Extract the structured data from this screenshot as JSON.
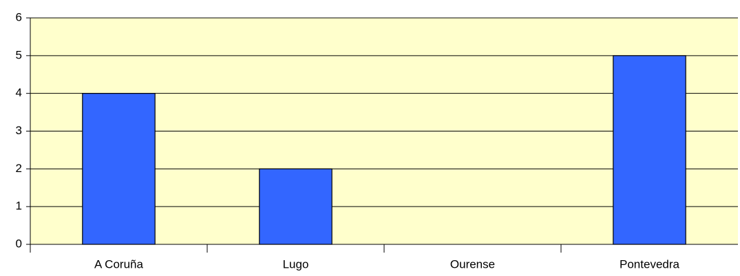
{
  "chart_data": {
    "type": "bar",
    "categories": [
      "A Coruña",
      "Lugo",
      "Ourense",
      "Pontevedra"
    ],
    "values": [
      4,
      2,
      0,
      5
    ],
    "color": "#3366ff",
    "plot_background": "#ffffcc",
    "ylim": [
      0,
      6
    ],
    "yticks": [
      0,
      1,
      2,
      3,
      4,
      5,
      6
    ],
    "grid": true
  }
}
